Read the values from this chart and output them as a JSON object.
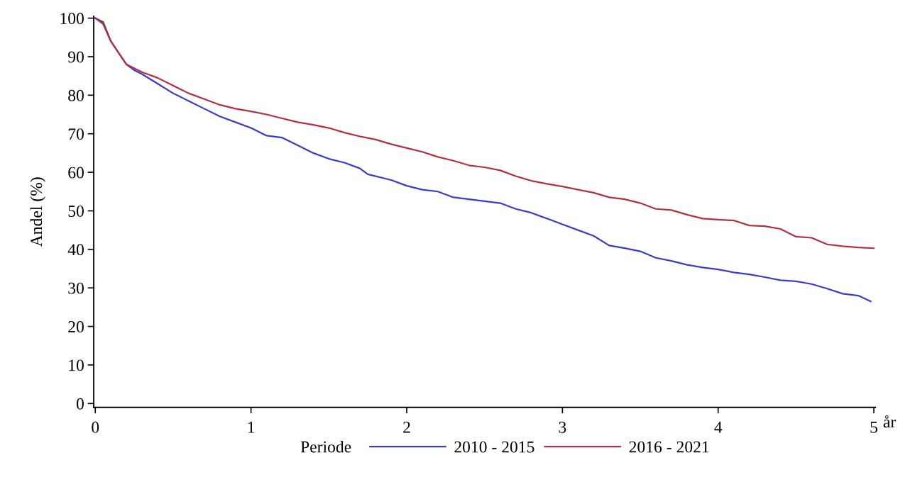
{
  "chart_data": {
    "type": "line",
    "ylabel": "Andel (%)",
    "xlabel": "år",
    "legend_title": "Periode",
    "legend": "bottom",
    "grid": false,
    "marker": "none",
    "line_style": "solid",
    "xlim": [
      -0.01,
      5.01
    ],
    "xticks": [
      0,
      1,
      2,
      3,
      4,
      5
    ],
    "ylim": [
      -1,
      100.5
    ],
    "yticks": [
      0,
      10,
      20,
      30,
      40,
      50,
      60,
      70,
      80,
      90,
      100
    ],
    "series": [
      {
        "name": "2010 - 2015",
        "color": "#3a3acc",
        "x": [
          0,
          0.05,
          0.1,
          0.15,
          0.2,
          0.25,
          0.3,
          0.4,
          0.5,
          0.6,
          0.7,
          0.8,
          0.9,
          1.0,
          1.1,
          1.2,
          1.3,
          1.4,
          1.5,
          1.6,
          1.7,
          1.75,
          1.9,
          2.0,
          2.1,
          2.2,
          2.3,
          2.5,
          2.6,
          2.7,
          2.8,
          2.9,
          3.0,
          3.1,
          3.2,
          3.3,
          3.4,
          3.5,
          3.6,
          3.7,
          3.8,
          3.9,
          4.0,
          4.1,
          4.2,
          4.3,
          4.4,
          4.5,
          4.6,
          4.7,
          4.8,
          4.9,
          4.98
        ],
        "values": [
          100,
          99,
          94,
          91,
          88,
          86.5,
          85.5,
          83,
          80.5,
          78.5,
          76.5,
          74.5,
          73,
          71.5,
          69.5,
          69,
          67,
          65,
          63.5,
          62.5,
          61,
          59.5,
          58,
          56.5,
          55.5,
          55,
          53.5,
          52.5,
          52,
          50.5,
          49.5,
          48,
          46.5,
          45,
          43.5,
          41,
          40.3,
          39.5,
          37.8,
          37,
          36,
          35.3,
          34.8,
          34,
          33.5,
          32.8,
          32,
          31.7,
          31,
          29.8,
          28.5,
          28,
          26.5
        ]
      },
      {
        "name": "2016 - 2021",
        "color": "#b5303f",
        "x": [
          0,
          0.05,
          0.1,
          0.15,
          0.2,
          0.3,
          0.4,
          0.5,
          0.6,
          0.7,
          0.8,
          0.9,
          1.0,
          1.1,
          1.2,
          1.3,
          1.4,
          1.5,
          1.6,
          1.7,
          1.8,
          1.9,
          2.0,
          2.1,
          2.2,
          2.3,
          2.4,
          2.5,
          2.6,
          2.7,
          2.8,
          2.9,
          3.0,
          3.1,
          3.2,
          3.3,
          3.4,
          3.5,
          3.6,
          3.7,
          3.8,
          3.9,
          4.0,
          4.1,
          4.2,
          4.3,
          4.4,
          4.5,
          4.6,
          4.7,
          4.8,
          4.9,
          5.0
        ],
        "values": [
          100,
          98.5,
          94,
          91,
          88,
          86,
          84.5,
          82.5,
          80.5,
          79,
          77.5,
          76.5,
          75.8,
          75,
          74,
          73,
          72.3,
          71.5,
          70.3,
          69.3,
          68.5,
          67.3,
          66.3,
          65.3,
          64,
          63,
          61.8,
          61.3,
          60.5,
          59,
          57.8,
          57,
          56.3,
          55.5,
          54.7,
          53.5,
          53,
          52,
          50.5,
          50.2,
          49,
          48,
          47.7,
          47.5,
          46.2,
          46,
          45.3,
          43.3,
          43,
          41.3,
          40.8,
          40.5,
          40.3
        ]
      }
    ]
  }
}
